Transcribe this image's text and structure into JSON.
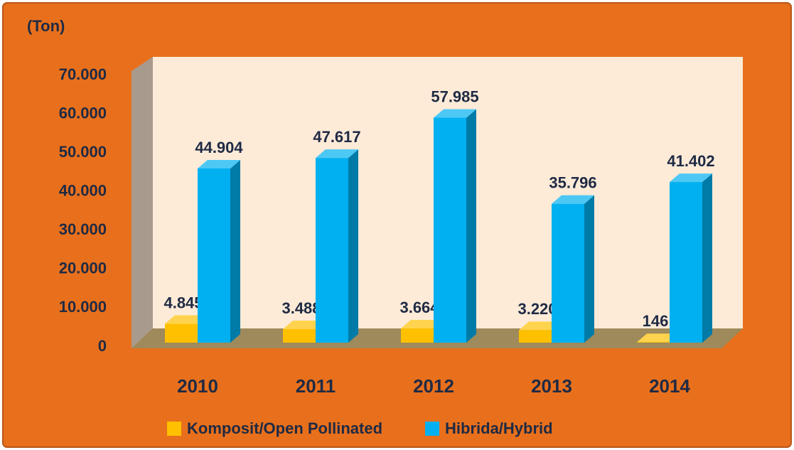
{
  "chart_data": {
    "type": "bar3d",
    "y_label": "(Ton)",
    "categories": [
      "2010",
      "2011",
      "2012",
      "2013",
      "2014"
    ],
    "series": [
      {
        "name": "Komposit/Open Pollinated",
        "color": "#FFC000",
        "values": [
          4845,
          3488,
          3664,
          3220,
          146
        ],
        "value_labels": [
          "4.845",
          "3.488",
          "3.664",
          "3.220",
          "146"
        ]
      },
      {
        "name": "Hibrida/Hybrid",
        "color": "#00B0F0",
        "values": [
          44904,
          47617,
          57985,
          35796,
          41402
        ],
        "value_labels": [
          "44.904",
          "47.617",
          "57.985",
          "35.796",
          "41.402"
        ]
      }
    ],
    "ylim": [
      0,
      70000
    ],
    "yticks": [
      0,
      {
        "value": 10000,
        "label": "10.000"
      },
      {
        "value": 20000,
        "label": "20.000"
      },
      {
        "value": 30000,
        "label": "30.000"
      },
      {
        "value": 40000,
        "label": "40.000"
      },
      {
        "value": 50000,
        "label": "50.000"
      },
      {
        "value": 60000,
        "label": "60.000"
      },
      {
        "value": 70000,
        "label": "70.000"
      }
    ],
    "legend": "bottom"
  }
}
